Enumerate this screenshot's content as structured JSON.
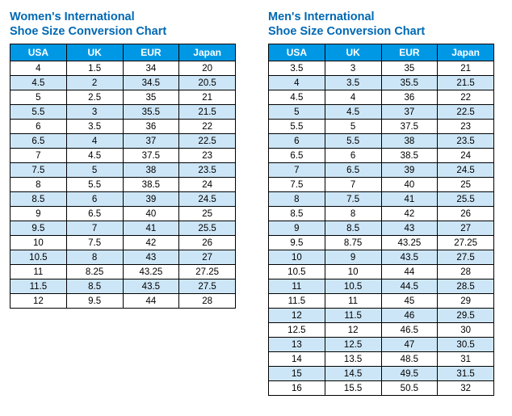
{
  "colors": {
    "title_color": "#0068b3",
    "header_bg": "#0098e5",
    "header_text": "#ffffff",
    "row_alt_bg": "#cde6f7",
    "row_bg": "#ffffff",
    "border_color": "#000000"
  },
  "women": {
    "title_line1": "Women's International",
    "title_line2": "Shoe Size Conversion Chart",
    "columns": [
      "USA",
      "UK",
      "EUR",
      "Japan"
    ],
    "rows": [
      [
        "4",
        "1.5",
        "34",
        "20"
      ],
      [
        "4.5",
        "2",
        "34.5",
        "20.5"
      ],
      [
        "5",
        "2.5",
        "35",
        "21"
      ],
      [
        "5.5",
        "3",
        "35.5",
        "21.5"
      ],
      [
        "6",
        "3.5",
        "36",
        "22"
      ],
      [
        "6.5",
        "4",
        "37",
        "22.5"
      ],
      [
        "7",
        "4.5",
        "37.5",
        "23"
      ],
      [
        "7.5",
        "5",
        "38",
        "23.5"
      ],
      [
        "8",
        "5.5",
        "38.5",
        "24"
      ],
      [
        "8.5",
        "6",
        "39",
        "24.5"
      ],
      [
        "9",
        "6.5",
        "40",
        "25"
      ],
      [
        "9.5",
        "7",
        "41",
        "25.5"
      ],
      [
        "10",
        "7.5",
        "42",
        "26"
      ],
      [
        "10.5",
        "8",
        "43",
        "27"
      ],
      [
        "11",
        "8.25",
        "43.25",
        "27.25"
      ],
      [
        "11.5",
        "8.5",
        "43.5",
        "27.5"
      ],
      [
        "12",
        "9.5",
        "44",
        "28"
      ]
    ]
  },
  "men": {
    "title_line1": "Men's International",
    "title_line2": "Shoe Size Conversion Chart",
    "columns": [
      "USA",
      "UK",
      "EUR",
      "Japan"
    ],
    "rows": [
      [
        "3.5",
        "3",
        "35",
        "21"
      ],
      [
        "4",
        "3.5",
        "35.5",
        "21.5"
      ],
      [
        "4.5",
        "4",
        "36",
        "22"
      ],
      [
        "5",
        "4.5",
        "37",
        "22.5"
      ],
      [
        "5.5",
        "5",
        "37.5",
        "23"
      ],
      [
        "6",
        "5.5",
        "38",
        "23.5"
      ],
      [
        "6.5",
        "6",
        "38.5",
        "24"
      ],
      [
        "7",
        "6.5",
        "39",
        "24.5"
      ],
      [
        "7.5",
        "7",
        "40",
        "25"
      ],
      [
        "8",
        "7.5",
        "41",
        "25.5"
      ],
      [
        "8.5",
        "8",
        "42",
        "26"
      ],
      [
        "9",
        "8.5",
        "43",
        "27"
      ],
      [
        "9.5",
        "8.75",
        "43.25",
        "27.25"
      ],
      [
        "10",
        "9",
        "43.5",
        "27.5"
      ],
      [
        "10.5",
        "10",
        "44",
        "28"
      ],
      [
        "11",
        "10.5",
        "44.5",
        "28.5"
      ],
      [
        "11.5",
        "11",
        "45",
        "29"
      ],
      [
        "12",
        "11.5",
        "46",
        "29.5"
      ],
      [
        "12.5",
        "12",
        "46.5",
        "30"
      ],
      [
        "13",
        "12.5",
        "47",
        "30.5"
      ],
      [
        "14",
        "13.5",
        "48.5",
        "31"
      ],
      [
        "15",
        "14.5",
        "49.5",
        "31.5"
      ],
      [
        "16",
        "15.5",
        "50.5",
        "32"
      ]
    ]
  }
}
